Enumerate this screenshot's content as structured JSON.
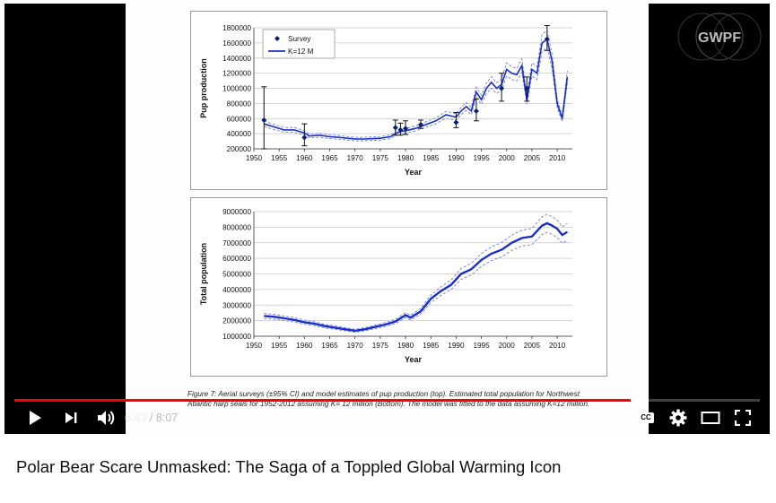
{
  "video": {
    "title": "Polar Bear Scare Unmasked: The Saga of a Toppled Global Warming Icon",
    "current_time": "6:43",
    "duration": "8:07",
    "progress": 0.827,
    "accent_color": "#ff0000"
  },
  "controls": {
    "play_icon": "play-icon",
    "next_icon": "next-icon",
    "volume_icon": "volume-icon",
    "time_separator": " / ",
    "cc_label": "CC",
    "settings_icon": "gear-icon",
    "theater_icon": "theater-icon",
    "fullscreen_icon": "fullscreen-icon"
  },
  "watermark": {
    "text": "GWPF"
  },
  "slide": {
    "caption": "Figure 7:  Aerial surveys (±95% CI) and model estimates of pup production (top). Estimated total population for Northwest Atlantic harp seals for 1952-2012 assuming K= 12 million (Bottom). The model was fitted to the data assuming K=12 million."
  },
  "chart_data": [
    {
      "type": "line",
      "title": "",
      "xlabel": "Year",
      "ylabel": "Pup production",
      "xlim": [
        1950,
        2013
      ],
      "ylim": [
        200000,
        1800000
      ],
      "xticks": [
        1950,
        1955,
        1960,
        1965,
        1970,
        1975,
        1980,
        1985,
        1990,
        1995,
        2000,
        2005,
        2010
      ],
      "yticks": [
        200000,
        400000,
        600000,
        800000,
        1000000,
        1200000,
        1400000,
        1600000,
        1800000
      ],
      "legend": [
        "Survey",
        "K=12 M"
      ],
      "series": [
        {
          "name": "K=12 M",
          "x": [
            1952,
            1954,
            1956,
            1958,
            1960,
            1961,
            1963,
            1965,
            1967,
            1970,
            1972,
            1975,
            1977,
            1978,
            1979,
            1980,
            1982,
            1984,
            1986,
            1988,
            1990,
            1991,
            1992,
            1993,
            1994,
            1995,
            1996,
            1997,
            1998,
            1999,
            2000,
            2001,
            2002,
            2003,
            2004,
            2005,
            2006,
            2007,
            2008,
            2009,
            2010,
            2011,
            2012
          ],
          "y": [
            530000,
            490000,
            450000,
            450000,
            410000,
            370000,
            380000,
            360000,
            350000,
            330000,
            330000,
            340000,
            360000,
            400000,
            430000,
            440000,
            470000,
            520000,
            570000,
            650000,
            620000,
            700000,
            760000,
            700000,
            950000,
            850000,
            1000000,
            1080000,
            1000000,
            1050000,
            1250000,
            1200000,
            1180000,
            1300000,
            850000,
            1250000,
            1200000,
            1600000,
            1650000,
            1350000,
            800000,
            600000,
            1150000
          ]
        },
        {
          "name": "Survey",
          "x": [
            1952,
            1960,
            1978,
            1979,
            1980,
            1983,
            1990,
            1994,
            1999,
            2004,
            2008
          ],
          "y": [
            580000,
            350000,
            480000,
            450000,
            470000,
            520000,
            550000,
            700000,
            1000000,
            1000000,
            1650000
          ],
          "ci_low": [
            200000,
            240000,
            380000,
            380000,
            390000,
            470000,
            480000,
            570000,
            830000,
            830000,
            1500000
          ],
          "ci_high": [
            1020000,
            530000,
            580000,
            540000,
            570000,
            580000,
            680000,
            860000,
            1200000,
            1150000,
            1830000
          ]
        }
      ]
    },
    {
      "type": "line",
      "title": "",
      "xlabel": "Year",
      "ylabel": "Total population",
      "xlim": [
        1950,
        2013
      ],
      "ylim": [
        1000000,
        9000000
      ],
      "xticks": [
        1950,
        1955,
        1960,
        1965,
        1970,
        1975,
        1980,
        1985,
        1990,
        1995,
        2000,
        2005,
        2010
      ],
      "yticks": [
        1000000,
        2000000,
        3000000,
        4000000,
        5000000,
        6000000,
        7000000,
        8000000,
        9000000
      ],
      "series": [
        {
          "name": "Total population",
          "x": [
            1952,
            1954,
            1956,
            1958,
            1960,
            1962,
            1964,
            1966,
            1968,
            1970,
            1972,
            1974,
            1976,
            1978,
            1980,
            1981,
            1983,
            1985,
            1987,
            1989,
            1991,
            1993,
            1995,
            1997,
            1999,
            2001,
            2003,
            2005,
            2007,
            2008,
            2009,
            2010,
            2011,
            2012
          ],
          "y": [
            2300000,
            2250000,
            2150000,
            2050000,
            1900000,
            1800000,
            1650000,
            1550000,
            1450000,
            1350000,
            1450000,
            1600000,
            1750000,
            1950000,
            2350000,
            2200000,
            2600000,
            3400000,
            3900000,
            4300000,
            5000000,
            5300000,
            5900000,
            6300000,
            6550000,
            7000000,
            7300000,
            7400000,
            8100000,
            8250000,
            8100000,
            7900000,
            7500000,
            7700000
          ]
        }
      ]
    }
  ]
}
